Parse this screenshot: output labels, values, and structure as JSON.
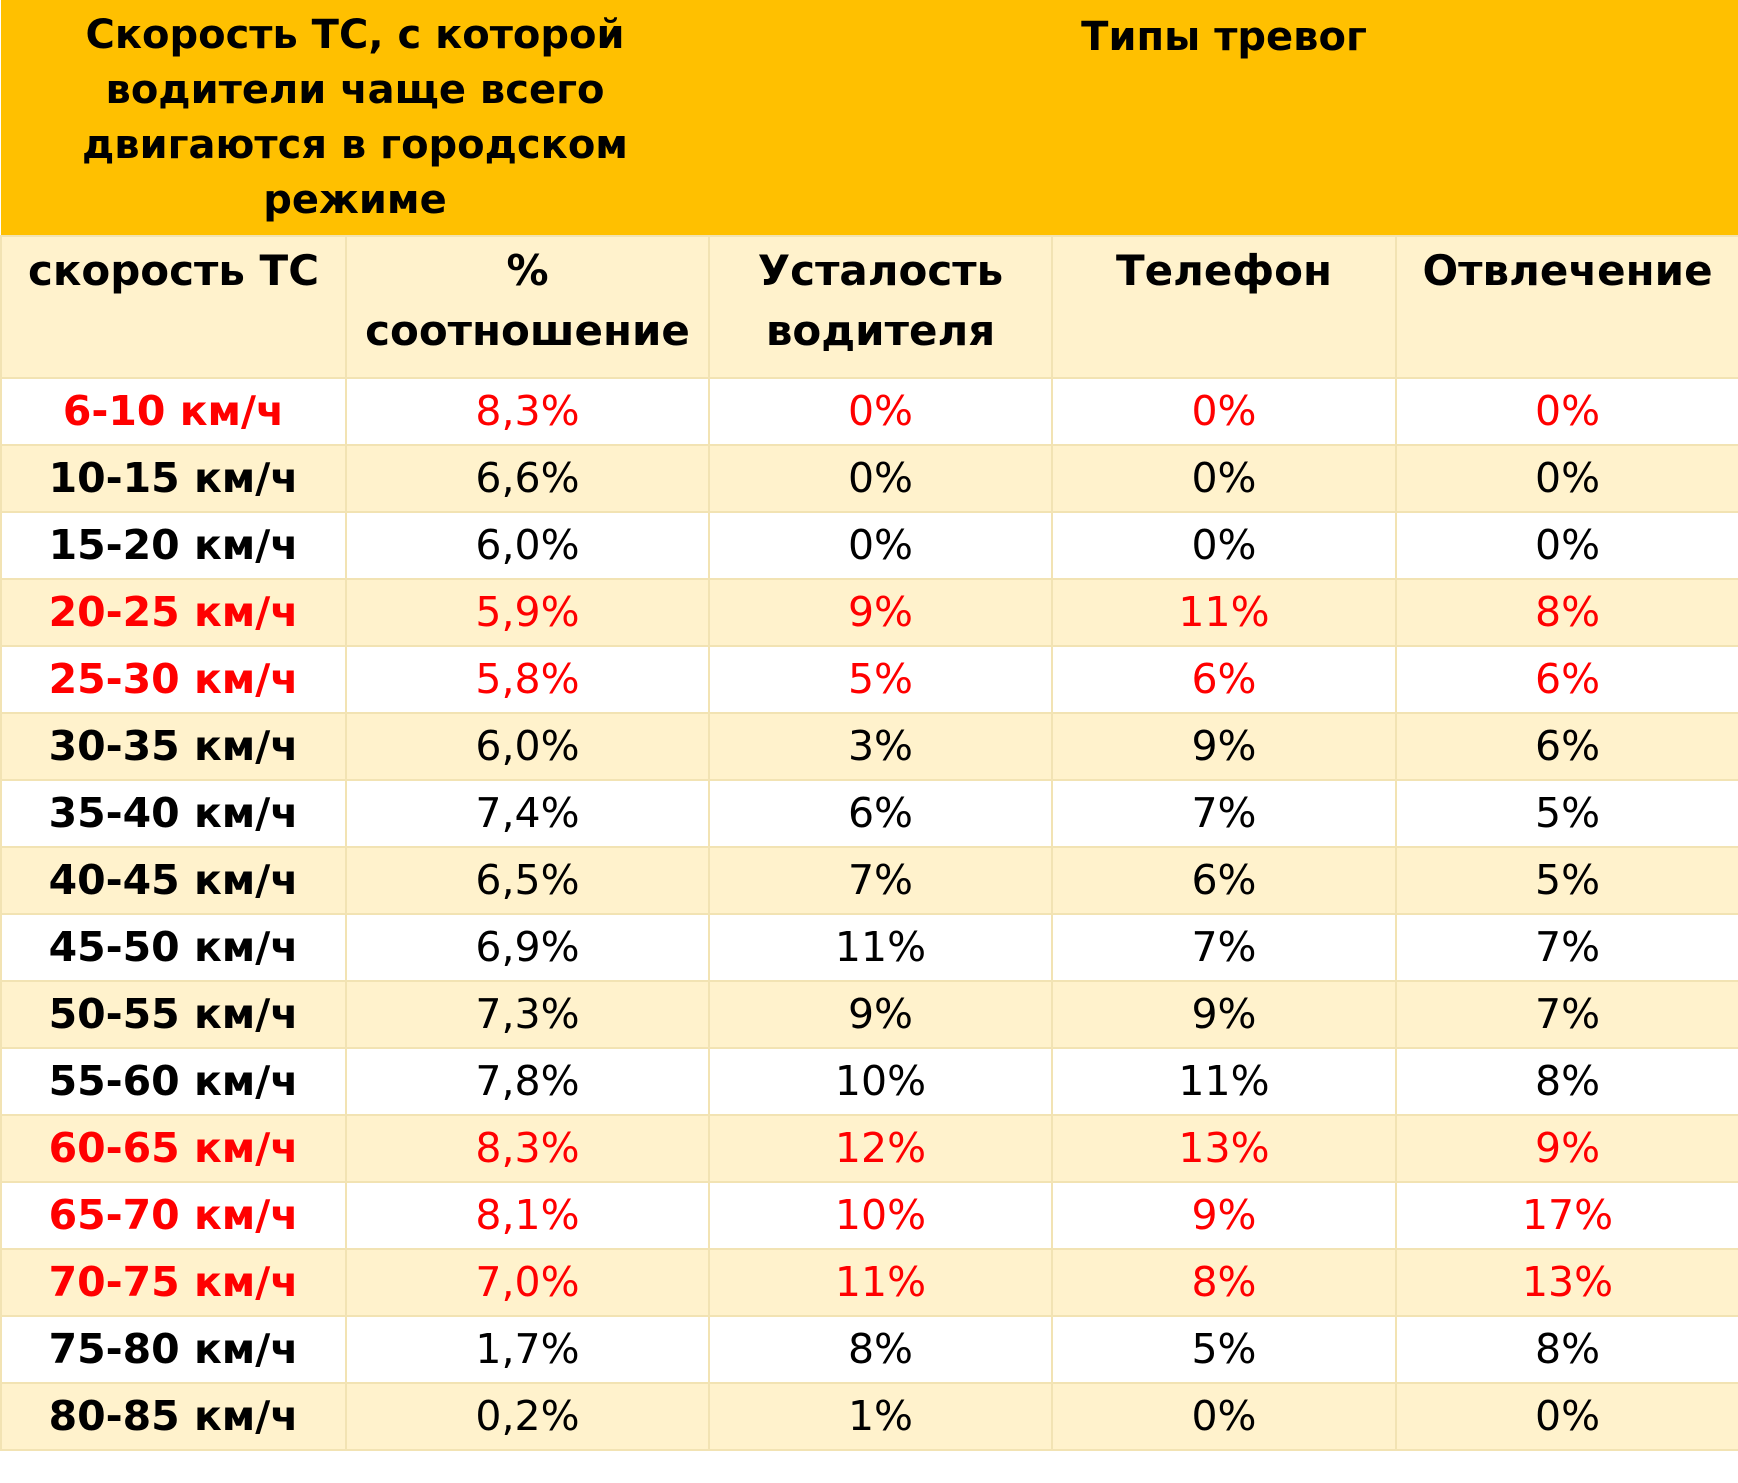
{
  "header": {
    "left_title": "Скорость ТС, с которой водители чаще всего двигаются в городском режиме",
    "right_title": "Типы тревог"
  },
  "columns": [
    "скорость ТС",
    "% соотношение",
    "Усталость водителя",
    "Телефон",
    "Отвлечение"
  ],
  "rows": [
    {
      "speed": "6-10 км/ч",
      "share": "8,3%",
      "fatigue": "0%",
      "phone": "0%",
      "distraction": "0%",
      "highlight": true
    },
    {
      "speed": "10-15 км/ч",
      "share": "6,6%",
      "fatigue": "0%",
      "phone": "0%",
      "distraction": "0%",
      "highlight": false
    },
    {
      "speed": "15-20 км/ч",
      "share": "6,0%",
      "fatigue": "0%",
      "phone": "0%",
      "distraction": "0%",
      "highlight": false
    },
    {
      "speed": "20-25 км/ч",
      "share": "5,9%",
      "fatigue": "9%",
      "phone": "11%",
      "distraction": "8%",
      "highlight": true
    },
    {
      "speed": "25-30 км/ч",
      "share": "5,8%",
      "fatigue": "5%",
      "phone": "6%",
      "distraction": "6%",
      "highlight": true
    },
    {
      "speed": "30-35 км/ч",
      "share": "6,0%",
      "fatigue": "3%",
      "phone": "9%",
      "distraction": "6%",
      "highlight": false
    },
    {
      "speed": "35-40 км/ч",
      "share": "7,4%",
      "fatigue": "6%",
      "phone": "7%",
      "distraction": "5%",
      "highlight": false
    },
    {
      "speed": "40-45 км/ч",
      "share": "6,5%",
      "fatigue": "7%",
      "phone": "6%",
      "distraction": "5%",
      "highlight": false
    },
    {
      "speed": "45-50 км/ч",
      "share": "6,9%",
      "fatigue": "11%",
      "phone": "7%",
      "distraction": "7%",
      "highlight": false
    },
    {
      "speed": "50-55 км/ч",
      "share": "7,3%",
      "fatigue": "9%",
      "phone": "9%",
      "distraction": "7%",
      "highlight": false
    },
    {
      "speed": "55-60 км/ч",
      "share": "7,8%",
      "fatigue": "10%",
      "phone": "11%",
      "distraction": "8%",
      "highlight": false
    },
    {
      "speed": "60-65 км/ч",
      "share": "8,3%",
      "fatigue": "12%",
      "phone": "13%",
      "distraction": "9%",
      "highlight": true
    },
    {
      "speed": "65-70 км/ч",
      "share": "8,1%",
      "fatigue": "10%",
      "phone": "9%",
      "distraction": "17%",
      "highlight": true
    },
    {
      "speed": "70-75 км/ч",
      "share": "7,0%",
      "fatigue": "11%",
      "phone": "8%",
      "distraction": "13%",
      "highlight": true
    },
    {
      "speed": "75-80 км/ч",
      "share": "1,7%",
      "fatigue": "8%",
      "phone": "5%",
      "distraction": "8%",
      "highlight": false
    },
    {
      "speed": "80-85 км/ч",
      "share": "0,2%",
      "fatigue": "1%",
      "phone": "0%",
      "distraction": "0%",
      "highlight": false
    }
  ],
  "colors": {
    "header_bg": "#ffc000",
    "stripe_bg": "#fff2cc",
    "highlight_text": "#ff0000"
  }
}
